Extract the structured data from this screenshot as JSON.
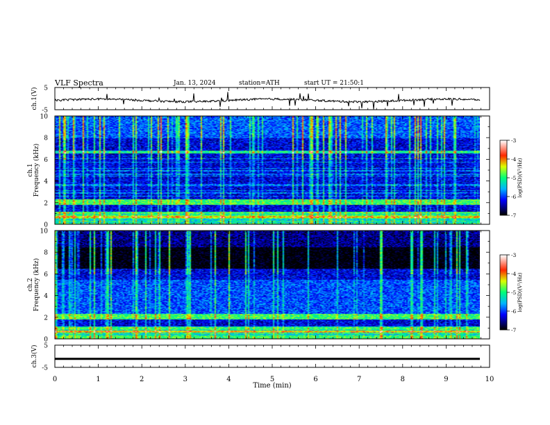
{
  "header": {
    "title": "VLF Spectra",
    "date": "Jan. 13, 2024",
    "station": "station=ATH",
    "start": "start UT = 21:50:1"
  },
  "colors": {
    "background": "#ffffff",
    "axes": "#000000",
    "colormap": [
      "#000000",
      "#00008b",
      "#0000ff",
      "#00bfff",
      "#00ff7f",
      "#ffff00",
      "#ff0000",
      "#ffffff"
    ]
  },
  "chart_data": [
    {
      "type": "line",
      "ylabel": "ch.1(V)",
      "ylim": [
        -5,
        5
      ],
      "yticks": [
        "5",
        "-5"
      ],
      "xlim": [
        0,
        10
      ],
      "series": [
        {
          "baseline": -0.8,
          "color": "#000000"
        }
      ]
    },
    {
      "type": "heatmap",
      "ylabel": "ch.1\nFrequency (kHz)",
      "ylim": [
        0,
        10
      ],
      "xlim": [
        0,
        10
      ],
      "yticks": [
        "0",
        "2",
        "4",
        "6",
        "8",
        "10"
      ],
      "colorbar": {
        "label": "log(PSD)(V²/Hz)",
        "range": [
          -7,
          -3
        ],
        "ticks": [
          "-3",
          "-4",
          "-5",
          "-6",
          "-7"
        ]
      }
    },
    {
      "type": "heatmap",
      "ylabel": "ch.2\nFrequency (kHz)",
      "ylim": [
        0,
        10
      ],
      "xlim": [
        0,
        10
      ],
      "yticks": [
        "0",
        "2",
        "4",
        "6",
        "8",
        "10"
      ],
      "colorbar": {
        "label": "log(PSD)(V²/Hz)",
        "range": [
          -7,
          -3
        ],
        "ticks": [
          "-3",
          "-4",
          "-5",
          "-6",
          "-7"
        ]
      }
    },
    {
      "type": "line",
      "ylabel": "ch.3(V)",
      "ylim": [
        -5,
        5
      ],
      "yticks": [
        "5",
        "-5"
      ],
      "xlim": [
        0,
        10
      ],
      "xlabel": "Time (min)",
      "xticks": [
        "0",
        "1",
        "2",
        "3",
        "4",
        "5",
        "6",
        "7",
        "8",
        "9",
        "10"
      ],
      "series": [
        {
          "baseline": -1.2,
          "color": "#000000"
        }
      ]
    }
  ]
}
